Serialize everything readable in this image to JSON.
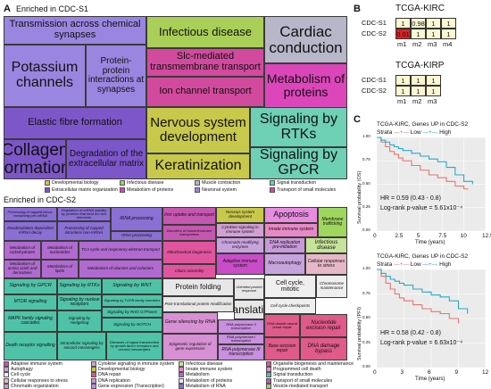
{
  "panel_a": {
    "letter": "A",
    "top_title": "Enriched in CDC-S1",
    "top_tiles": [
      {
        "name": "tile-transmission-synapses",
        "label": "Transmission across chemical synapses",
        "color": "#9a86e0"
      },
      {
        "name": "tile-potassium-channels",
        "label": "Potassium channels",
        "color": "#9a86e0"
      },
      {
        "name": "tile-protein-interactions-synapses",
        "label": "Protein-protein interactions at synapses",
        "color": "#9a86e0"
      },
      {
        "name": "tile-infectious-disease",
        "label": "Infectious disease",
        "color": "#a9cf58"
      },
      {
        "name": "tile-slc-transport",
        "label": "Slc-mediated transmembrane transport",
        "color": "#d24a9e"
      },
      {
        "name": "tile-ion-channel",
        "label": "Ion channel transport",
        "color": "#d24a9e"
      },
      {
        "name": "tile-cardiac-conduction",
        "label": "Cardiac conduction",
        "color": "#b7b7c9"
      },
      {
        "name": "tile-metabolism-proteins",
        "label": "Metabolism of proteins",
        "color": "#dd46bb"
      },
      {
        "name": "tile-elastic-fibre",
        "label": "Elastic fibre formation",
        "color": "#7d56c9"
      },
      {
        "name": "tile-collagen",
        "label": "Collagen formation",
        "color": "#7d56c9"
      },
      {
        "name": "tile-degradation-ecm",
        "label": "Degradation of the extracellular matrix",
        "color": "#7d56c9"
      },
      {
        "name": "tile-nervous-dev",
        "label": "Nervous system development",
        "color": "#c8c84a"
      },
      {
        "name": "tile-keratinization",
        "label": "Keratinization",
        "color": "#c8c84a"
      },
      {
        "name": "tile-signaling-rtks",
        "label": "Signaling by RTKs",
        "color": "#6ed0b4"
      },
      {
        "name": "tile-signaling-gpcr",
        "label": "Signaling by GPCR",
        "color": "#6ed0b4"
      }
    ],
    "top_legend": [
      {
        "label": "Developmental biology",
        "color": "#c8c84a"
      },
      {
        "label": "Infectious disease",
        "color": "#a9cf58"
      },
      {
        "label": "Muscle contraction",
        "color": "#b7b7c9"
      },
      {
        "label": "Signal transduction",
        "color": "#6ed0b4"
      },
      {
        "label": "Extracellular matrix organization",
        "color": "#7d56c9"
      },
      {
        "label": "Metabolism of proteins",
        "color": "#dd46bb"
      },
      {
        "label": "Neuronal system",
        "color": "#9a86e0"
      },
      {
        "label": "Transport of small molecules",
        "color": "#d24a9e"
      }
    ],
    "bottom_title": "Enriched in CDC-S2",
    "bottom_tiles": [
      {
        "name": "tile-processing-capped-1",
        "label": "Processing of capped intron-containing pre-mRNA",
        "color": "#8a6fd4"
      },
      {
        "name": "tile-regulation-mrna",
        "label": "Regulation of mRNA stability by proteins that bind AU-rich elements",
        "color": "#8a6fd4"
      },
      {
        "name": "tile-trna-processing",
        "label": "tRNA processing",
        "color": "#8a6fd4"
      },
      {
        "name": "tile-deadenylation",
        "label": "Deadenylation-dependent mRNA decay",
        "color": "#8a6fd4"
      },
      {
        "name": "tile-processing-capped-2",
        "label": "Processing of capped intronless non-mRNA",
        "color": "#8a6fd4"
      },
      {
        "name": "tile-rrna-processing",
        "label": "rRNA processing",
        "color": "#8a6fd4"
      },
      {
        "name": "tile-iron-uptake",
        "label": "Iron uptake and transport",
        "color": "#c657b0"
      },
      {
        "name": "tile-disorders-transmembrane",
        "label": "Disorders of transmembrane transporters",
        "color": "#c657b0"
      },
      {
        "name": "tile-nervous-dev-2",
        "label": "Nervous system development",
        "color": "#c8c84a"
      },
      {
        "name": "tile-cytokine-signaling",
        "label": "Cytokine signaling in immune system",
        "color": "#d3a0d6"
      },
      {
        "name": "tile-apoptosis",
        "label": "Apoptosis",
        "color": "#e88ce0"
      },
      {
        "name": "tile-membrane-trafficking",
        "label": "Membrane trafficking",
        "color": "#9ed65e"
      },
      {
        "name": "tile-innate-immune",
        "label": "Innate immune system",
        "color": "#e889c7"
      },
      {
        "name": "tile-metab-carbohydrates",
        "label": "Metabolism of carbohydrates",
        "color": "#b06ad0"
      },
      {
        "name": "tile-metab-nucleotides",
        "label": "Metabolism of nucleotides",
        "color": "#b06ad0"
      },
      {
        "name": "tile-tca-cycle",
        "label": "TCA cycle and respiratory electron transport",
        "color": "#b06ad0"
      },
      {
        "name": "tile-mitochondrial-biogenesis",
        "label": "Mitochondrial biogenesis",
        "color": "#e0559e"
      },
      {
        "name": "tile-chromatin-enzymes",
        "label": "Chromatin modifying enzymes",
        "color": "#c7a3dd"
      },
      {
        "name": "tile-dna-replication-pre",
        "label": "DNA replication pre-initiation",
        "color": "#c89ad9"
      },
      {
        "name": "tile-infectious-disease-2",
        "label": "Infectious disease",
        "color": "#c6e39a"
      },
      {
        "name": "tile-metab-amino-acids",
        "label": "Metabolism of amino acids and derivatives",
        "color": "#b06ad0"
      },
      {
        "name": "tile-metab-lipids",
        "label": "Metabolism of lipids",
        "color": "#b06ad0"
      },
      {
        "name": "tile-metab-vitamins",
        "label": "Metabolism of vitamins and cofactors",
        "color": "#b06ad0"
      },
      {
        "name": "tile-cilium-assembly",
        "label": "Cilium assembly",
        "color": "#e0559e"
      },
      {
        "name": "tile-adaptive-immune",
        "label": "Adaptive immune system",
        "color": "#c94cc8"
      },
      {
        "name": "tile-macroautophagy",
        "label": "Macroautophagy",
        "color": "#c7a3dd"
      },
      {
        "name": "tile-cellular-stress",
        "label": "Cellular responses to stress",
        "color": "#e6b8c7"
      },
      {
        "name": "tile-signaling-gpcr-2",
        "label": "Signaling by GPCR",
        "color": "#4fc3a7"
      },
      {
        "name": "tile-signaling-rtks-2",
        "label": "Signaling by RTKs",
        "color": "#4fc3a7"
      },
      {
        "name": "tile-signaling-wnt",
        "label": "Signaling by WNT",
        "color": "#4fc3a7"
      },
      {
        "name": "tile-signaling-tgfb",
        "label": "Signaling by TGFB family members",
        "color": "#4fc3a7"
      },
      {
        "name": "tile-mtor-signaling",
        "label": "MTOR signalling",
        "color": "#4fc3a7"
      },
      {
        "name": "tile-signaling-nuclear",
        "label": "Signaling by nuclear receptors",
        "color": "#4fc3a7"
      },
      {
        "name": "tile-signaling-rho",
        "label": "Signaling by RHO GTPases",
        "color": "#4fc3a7"
      },
      {
        "name": "tile-mapk-cascades",
        "label": "MAPK family signaling cascades",
        "color": "#4fc3a7"
      },
      {
        "name": "tile-signaling-hedgehog",
        "label": "Signaling by Hedgehog",
        "color": "#4fc3a7"
      },
      {
        "name": "tile-signaling-notch",
        "label": "Signaling by NOTCH",
        "color": "#4fc3a7"
      },
      {
        "name": "tile-death-receptor",
        "label": "Death receptor signalling",
        "color": "#4fc3a7"
      },
      {
        "name": "tile-intracellular-second-messengers",
        "label": "Intracellular signaling by second messengers",
        "color": "#4fc3a7"
      },
      {
        "name": "tile-signaling-growth-factor",
        "label": "Diseases of signal transduction by growth factor receptors and second messengers",
        "color": "#4fc3a7"
      },
      {
        "name": "tile-protein-folding",
        "label": "Protein folding",
        "color": "#e7e7e7"
      },
      {
        "name": "tile-post-translational",
        "label": "Post-translational protein modification",
        "color": "#e7e7e7"
      },
      {
        "name": "tile-unfolded-protein",
        "label": "Unfolded protein response",
        "color": "#e7e7e7"
      },
      {
        "name": "tile-translation",
        "label": "Translation",
        "color": "#e7e7e7"
      },
      {
        "name": "tile-gene-silencing",
        "label": "Gene silencing by RNA",
        "color": "#d890d4"
      },
      {
        "name": "tile-epigenetic",
        "label": "Epigenetic regulation of gene expression",
        "color": "#d890d4"
      },
      {
        "name": "tile-rna-pol-ii",
        "label": "RNA polymerase II transcription",
        "color": "#c98fe0"
      },
      {
        "name": "tile-rna-pol-i",
        "label": "RNA polymerase I transcription",
        "color": "#c98fe0"
      },
      {
        "name": "tile-rna-pol-iii",
        "label": "RNA polymerase III transcription",
        "color": "#c98fe0"
      },
      {
        "name": "tile-cell-cycle-mitotic",
        "label": "Cell cycle, mitotic",
        "color": "#efefef"
      },
      {
        "name": "tile-chromosome-maintenance",
        "label": "Chromosome maintenance",
        "color": "#efefef"
      },
      {
        "name": "tile-cell-cycle-checkpoints",
        "label": "Cell cycle checkpoints",
        "color": "#efefef"
      },
      {
        "name": "tile-dna-double-strand",
        "label": "DNA double-strand break repair",
        "color": "#e05a8a"
      },
      {
        "name": "tile-nucleotide-excision",
        "label": "Nucleotide excision repair",
        "color": "#e05a8a"
      },
      {
        "name": "tile-base-excision",
        "label": "Base excision repair",
        "color": "#e05a8a"
      },
      {
        "name": "tile-dna-damage-bypass",
        "label": "DNA damage bypass",
        "color": "#e05a8a"
      }
    ],
    "bottom_legend": [
      {
        "label": "Adaptive immune system",
        "color": "#c94cc8"
      },
      {
        "label": "Cytokine signaling in immune system",
        "color": "#d3a0d6"
      },
      {
        "label": "Infectious disease",
        "color": "#c6e39a"
      },
      {
        "label": "Organelle biogenesis and maintenance",
        "color": "#e0559e"
      },
      {
        "label": "Autophagy",
        "color": "#c7a3dd"
      },
      {
        "label": "Developmental biology",
        "color": "#c8c84a"
      },
      {
        "label": "Innate immune system",
        "color": "#e889c7"
      },
      {
        "label": "Programmed cell death",
        "color": "#e88ce0"
      },
      {
        "label": "Cell cycle",
        "color": "#efefef"
      },
      {
        "label": "DNA repair",
        "color": "#e05a8a"
      },
      {
        "label": "Metabolism",
        "color": "#b06ad0"
      },
      {
        "label": "Signal transduction",
        "color": "#4fc3a7"
      },
      {
        "label": "Cellular responses to stress",
        "color": "#e6b8c7"
      },
      {
        "label": "DNA replication",
        "color": "#c89ad9"
      },
      {
        "label": "Metabolism of proteins",
        "color": "#e7e7e7"
      },
      {
        "label": "Transport of small molecules",
        "color": "#c657b0"
      },
      {
        "label": "Chromatin organization",
        "color": "#d890d4"
      },
      {
        "label": "Gene expression (Transcription)",
        "color": "#c98fe0"
      },
      {
        "label": "Metabolism of RNA",
        "color": "#8a6fd4"
      },
      {
        "label": "Vesicle-mediated transport",
        "color": "#9ed65e"
      }
    ]
  },
  "panel_b": {
    "letter": "B",
    "kirc": {
      "title": "TCGA-KIRC",
      "rows": [
        "CDC-S1",
        "CDC-S2"
      ],
      "cols": [
        "m1",
        "m2",
        "m3",
        "m4"
      ],
      "values": [
        [
          "1",
          "0.98",
          "1",
          "1"
        ],
        [
          "0.01",
          "1",
          "1",
          "1"
        ]
      ]
    },
    "kirp": {
      "title": "TCGA-KIRP",
      "rows": [
        "CDC-S1",
        "CDC-S2"
      ],
      "cols": [
        "m1",
        "m2",
        "m3"
      ],
      "values": [
        [
          "1",
          "1",
          "1"
        ],
        [
          "1",
          "1",
          "1"
        ]
      ]
    }
  },
  "panel_c": {
    "letter": "C",
    "charts": [
      {
        "title": "TCGA-KIRC, Genes UP in CDC-S2",
        "strata_label": "Strata",
        "legend": [
          {
            "label": "Low",
            "color": "#e8766d"
          },
          {
            "label": "High",
            "color": "#2aa9c8"
          }
        ],
        "ylabel": "Survival probability (OS)",
        "xlabel": "Time (years)",
        "xticks": [
          "0",
          "2.5",
          "5",
          "7.5",
          "10",
          "12.5"
        ],
        "yticks": [
          "0.00",
          "0.25",
          "0.50",
          "0.75",
          "1.00"
        ],
        "hr_text": "HR = 0.59 (0.43 - 0.8)",
        "p_text": "Log-rank p-value = 5.61x10⁻⁴",
        "xmax": 12.5,
        "series_low": [
          [
            0,
            1
          ],
          [
            0.5,
            0.95
          ],
          [
            1,
            0.9
          ],
          [
            1.5,
            0.85
          ],
          [
            2,
            0.82
          ],
          [
            2.5,
            0.78
          ],
          [
            3,
            0.75
          ],
          [
            4,
            0.7
          ],
          [
            5,
            0.65
          ],
          [
            6,
            0.6
          ],
          [
            7,
            0.57
          ],
          [
            8,
            0.53
          ],
          [
            9,
            0.48
          ],
          [
            10,
            0.45
          ],
          [
            10.5,
            0.45
          ]
        ],
        "series_high": [
          [
            0,
            1
          ],
          [
            0.5,
            0.97
          ],
          [
            1,
            0.95
          ],
          [
            1.5,
            0.92
          ],
          [
            2,
            0.9
          ],
          [
            2.5,
            0.88
          ],
          [
            3,
            0.86
          ],
          [
            4,
            0.83
          ],
          [
            5,
            0.8
          ],
          [
            6,
            0.77
          ],
          [
            7,
            0.74
          ],
          [
            8,
            0.68
          ],
          [
            9,
            0.6
          ],
          [
            10,
            0.53
          ],
          [
            11,
            0.5
          ]
        ]
      },
      {
        "title": "TCGA-KIRC, Genes UP in CDC-S2",
        "strata_label": "Strata",
        "legend": [
          {
            "label": "Low",
            "color": "#e8766d"
          },
          {
            "label": "High",
            "color": "#2aa9c8"
          }
        ],
        "ylabel": "Survival probability (PFI)",
        "xlabel": "Time (years)",
        "xticks": [
          "0",
          "3",
          "6",
          "9",
          "12"
        ],
        "yticks": [
          "0.00",
          "0.25",
          "0.50",
          "0.75",
          "1.00"
        ],
        "hr_text": "HR = 0.58 (0.42 - 0.8)",
        "p_text": "Log-rank p-value = 6.63x10⁻⁴",
        "xmax": 12,
        "series_low": [
          [
            0,
            1
          ],
          [
            0.5,
            0.93
          ],
          [
            1,
            0.86
          ],
          [
            1.5,
            0.8
          ],
          [
            2,
            0.75
          ],
          [
            2.5,
            0.71
          ],
          [
            3,
            0.68
          ],
          [
            4,
            0.64
          ],
          [
            5,
            0.6
          ],
          [
            6,
            0.57
          ],
          [
            7,
            0.55
          ],
          [
            8,
            0.5
          ],
          [
            9,
            0.45
          ]
        ],
        "series_high": [
          [
            0,
            1
          ],
          [
            0.5,
            0.96
          ],
          [
            1,
            0.93
          ],
          [
            1.5,
            0.9
          ],
          [
            2,
            0.88
          ],
          [
            2.5,
            0.86
          ],
          [
            3,
            0.84
          ],
          [
            4,
            0.8
          ],
          [
            5,
            0.77
          ],
          [
            6,
            0.74
          ],
          [
            7,
            0.72
          ],
          [
            8,
            0.68
          ],
          [
            9,
            0.6
          ],
          [
            10,
            0.55
          ]
        ]
      }
    ]
  }
}
